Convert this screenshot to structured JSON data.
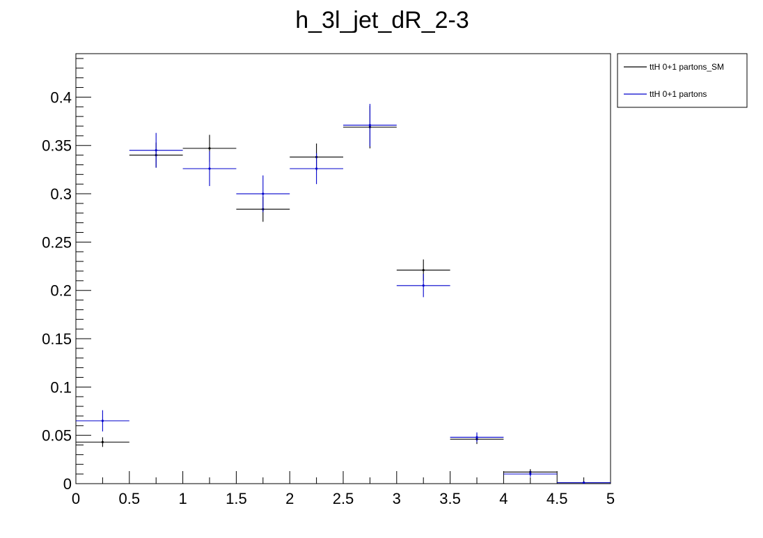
{
  "chart_data": {
    "type": "scatter",
    "title": "h_3l_jet_dR_2-3",
    "xlabel": "",
    "ylabel": "",
    "xlim": [
      0,
      5
    ],
    "ylim": [
      0,
      0.445
    ],
    "x_ticks": [
      "0",
      "0.5",
      "1",
      "1.5",
      "2",
      "2.5",
      "3",
      "3.5",
      "4",
      "4.5",
      "5"
    ],
    "y_ticks": [
      "0",
      "0.05",
      "0.1",
      "0.15",
      "0.2",
      "0.25",
      "0.3",
      "0.35",
      "0.4"
    ],
    "bin_edges": [
      0,
      0.5,
      1,
      1.5,
      2,
      2.5,
      3,
      3.5,
      4,
      4.5,
      5
    ],
    "grid": false,
    "legend_position": "outside-top-right",
    "series": [
      {
        "name": "ttH 0+1 partons_SM",
        "color": "#000000",
        "values": [
          0.043,
          0.34,
          0.347,
          0.284,
          0.338,
          0.369,
          0.221,
          0.046,
          0.012,
          0.001
        ],
        "errors": [
          0.005,
          0.013,
          0.014,
          0.013,
          0.014,
          0.022,
          0.011,
          0.005,
          0.003,
          0.001
        ]
      },
      {
        "name": "ttH 0+1 partons",
        "color": "#0000cc",
        "values": [
          0.065,
          0.345,
          0.326,
          0.3,
          0.326,
          0.371,
          0.205,
          0.048,
          0.01,
          0.001
        ],
        "errors": [
          0.011,
          0.018,
          0.018,
          0.019,
          0.016,
          0.022,
          0.012,
          0.005,
          0.003,
          0.001
        ]
      }
    ]
  }
}
